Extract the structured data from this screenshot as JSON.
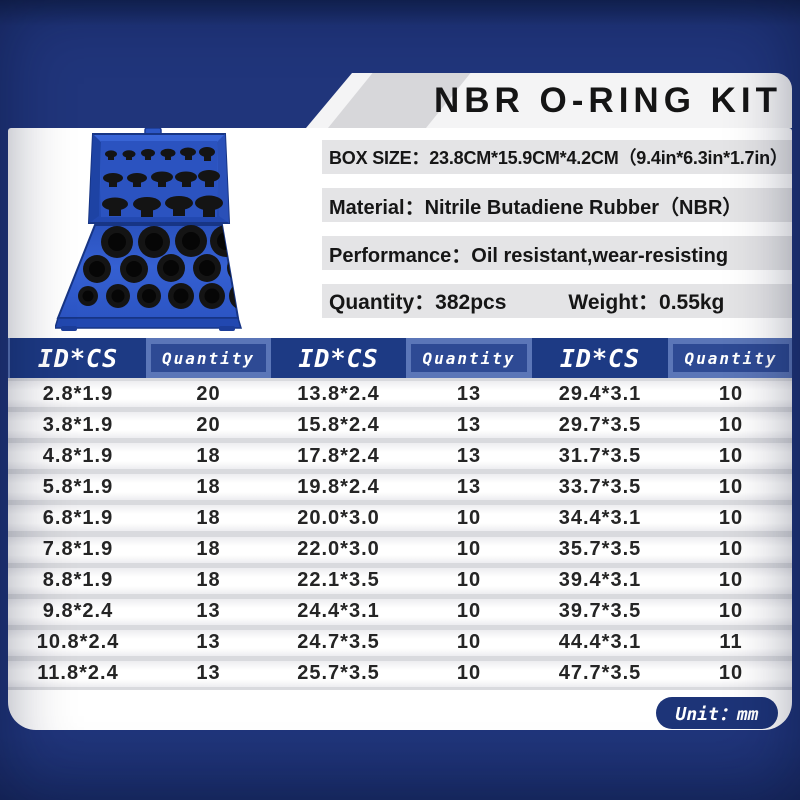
{
  "header": {
    "title": "NBR O-RING KIT"
  },
  "specs": {
    "box_size": "BOX SIZE：23.8CM*15.9CM*4.2CM（9.4in*6.3in*1.7in）",
    "material": "Material：Nitrile Butadiene Rubber（NBR）",
    "performance": "Performance：Oil resistant,wear-resisting",
    "quantity": "Quantity：382pcs",
    "weight": "Weight：0.55kg"
  },
  "table": {
    "headers": [
      "ID*CS",
      "Quantity",
      "ID*CS",
      "Quantity",
      "ID*CS",
      "Quantity"
    ],
    "rows": [
      [
        "2.8*1.9",
        "20",
        "13.8*2.4",
        "13",
        "29.4*3.1",
        "10"
      ],
      [
        "3.8*1.9",
        "20",
        "15.8*2.4",
        "13",
        "29.7*3.5",
        "10"
      ],
      [
        "4.8*1.9",
        "18",
        "17.8*2.4",
        "13",
        "31.7*3.5",
        "10"
      ],
      [
        "5.8*1.9",
        "18",
        "19.8*2.4",
        "13",
        "33.7*3.5",
        "10"
      ],
      [
        "6.8*1.9",
        "18",
        "20.0*3.0",
        "10",
        "34.4*3.1",
        "10"
      ],
      [
        "7.8*1.9",
        "18",
        "22.0*3.0",
        "10",
        "35.7*3.5",
        "10"
      ],
      [
        "8.8*1.9",
        "18",
        "22.1*3.5",
        "10",
        "39.4*3.1",
        "10"
      ],
      [
        "9.8*2.4",
        "13",
        "24.4*3.1",
        "10",
        "39.7*3.5",
        "10"
      ],
      [
        "10.8*2.4",
        "13",
        "24.7*3.5",
        "10",
        "44.4*3.1",
        "11"
      ],
      [
        "11.8*2.4",
        "13",
        "25.7*3.5",
        "10",
        "47.7*3.5",
        "10"
      ]
    ]
  },
  "footer": {
    "unit_label": "Unit：mm"
  },
  "icons": {
    "product_photo": "blue-oring-assortment-case"
  },
  "colors": {
    "navy_background": "#20357b",
    "header_cell_dark": "#1d3a84",
    "header_cell_mid": "#2e4a94",
    "header_band": "#5b76b8",
    "spec_band_gray": "#e4e4e6",
    "case_blue": "#2d57c6"
  }
}
